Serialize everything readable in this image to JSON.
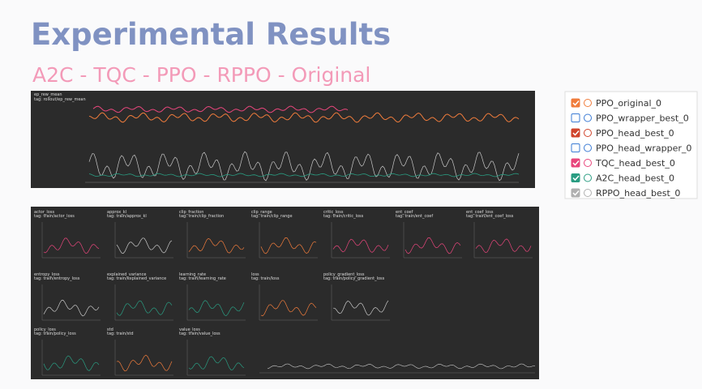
{
  "header": {
    "title": "Experimental Results",
    "subtitle": "A2C - TQC - PPO - RPPO - Original"
  },
  "main_panel": {
    "title": "ep_rew_mean",
    "tag": "tag: rollout/ep_rew_mean"
  },
  "legend": [
    {
      "label": "PPO_original_0",
      "checked": true,
      "color": "#f07c3c"
    },
    {
      "label": "PPO_wrapper_best_0",
      "checked": false,
      "color": "#3b7bd4"
    },
    {
      "label": "PPO_head_best_0",
      "checked": true,
      "color": "#d0442c"
    },
    {
      "label": "PPO_head_wrapper_0",
      "checked": false,
      "color": "#3b7bd4"
    },
    {
      "label": "TQC_head_best_0",
      "checked": true,
      "color": "#e8467c"
    },
    {
      "label": "A2C_head_best_0",
      "checked": true,
      "color": "#2a9d82"
    },
    {
      "label": "RPPO_head_best_0",
      "checked": true,
      "color": "#b0b0b0"
    }
  ],
  "panels": [
    {
      "title": "actor_loss",
      "tag": "tag: train/actor_loss"
    },
    {
      "title": "approx_kl",
      "tag": "tag: train/approx_kl"
    },
    {
      "title": "clip_fraction",
      "tag": "tag: train/clip_fraction"
    },
    {
      "title": "clip_range",
      "tag": "tag: train/clip_range"
    },
    {
      "title": "critic_loss",
      "tag": "tag: train/critic_loss"
    },
    {
      "title": "ent_coef",
      "tag": "tag: train/ent_coef"
    },
    {
      "title": "ent_coef_loss",
      "tag": "tag: train/ent_coef_loss"
    },
    {
      "title": "entropy_loss",
      "tag": "tag: train/entropy_loss"
    },
    {
      "title": "explained_variance",
      "tag": "tag: train/explained_variance"
    },
    {
      "title": "learning_rate",
      "tag": "tag: train/learning_rate"
    },
    {
      "title": "loss",
      "tag": "tag: train/loss"
    },
    {
      "title": "policy_gradient_loss",
      "tag": "tag: train/policy_gradient_loss"
    },
    {
      "title": "policy_loss",
      "tag": "tag: train/policy_loss"
    },
    {
      "title": "std",
      "tag": "tag: train/std"
    },
    {
      "title": "value_loss",
      "tag": "tag: train/value_loss"
    }
  ]
}
